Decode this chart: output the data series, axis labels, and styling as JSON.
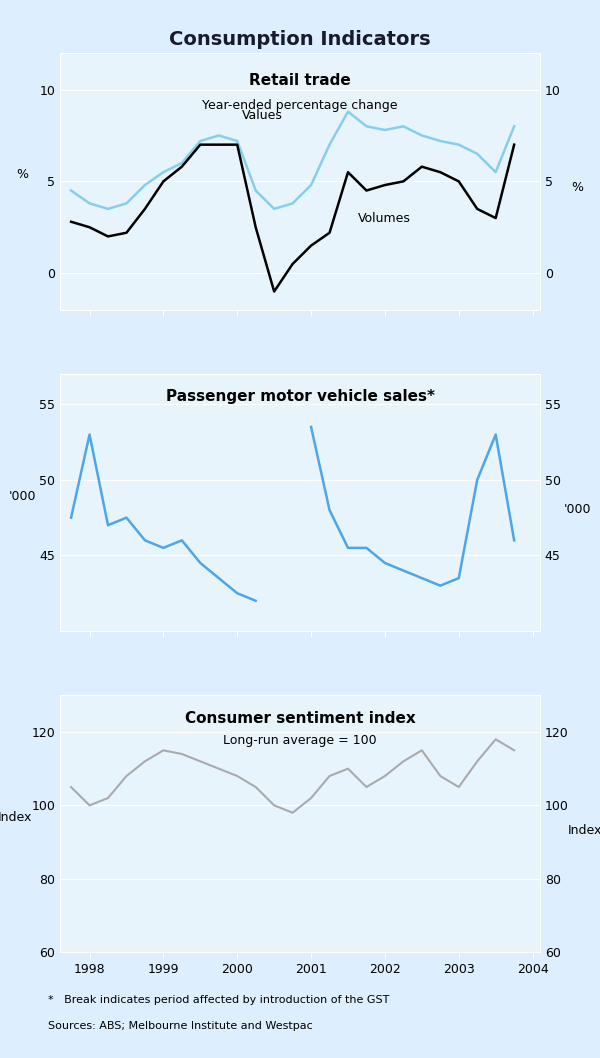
{
  "title": "Consumption Indicators",
  "background_color": "#ddeeff",
  "plot_bg_color": "#ddeeff",
  "panel_bg_color": "#e8f4fc",
  "panel1": {
    "title": "Retail trade",
    "subtitle": "Year-ended percentage change",
    "ylabel_left": "%",
    "ylabel_right": "%",
    "ylim": [
      -2,
      12
    ],
    "yticks": [
      0,
      5,
      10
    ],
    "values_label": "Values",
    "volumes_label": "Volumes",
    "values_color": "#87CEEB",
    "volumes_color": "#000000",
    "x_values": [
      1997.75,
      1998.0,
      1998.25,
      1998.5,
      1998.75,
      1999.0,
      1999.25,
      1999.5,
      1999.75,
      2000.0,
      2000.25,
      2000.5,
      2000.75,
      2001.0,
      2001.25,
      2001.5,
      2001.75,
      2002.0,
      2002.25,
      2002.5,
      2002.75,
      2003.0,
      2003.25,
      2003.5,
      2003.75
    ],
    "values_data": [
      4.5,
      3.8,
      3.5,
      3.8,
      4.8,
      5.5,
      6.0,
      7.2,
      7.5,
      7.2,
      4.5,
      3.5,
      3.8,
      4.8,
      7.0,
      8.8,
      8.0,
      7.8,
      8.0,
      7.5,
      7.2,
      7.0,
      6.5,
      5.5,
      8.0
    ],
    "volumes_data": [
      2.8,
      2.5,
      2.0,
      2.2,
      3.5,
      5.0,
      5.8,
      7.0,
      7.0,
      7.0,
      2.5,
      -1.0,
      0.5,
      1.5,
      2.2,
      5.5,
      4.5,
      4.8,
      5.0,
      5.8,
      5.5,
      5.0,
      3.5,
      3.0,
      7.0
    ]
  },
  "panel2": {
    "title": "Passenger motor vehicle sales*",
    "ylabel_left": "'000",
    "ylabel_right": "'000",
    "ylim": [
      40,
      57
    ],
    "yticks": [
      45,
      50,
      55
    ],
    "line_color": "#4da6e8",
    "x_values": [
      1997.75,
      1998.0,
      1998.25,
      1998.5,
      1998.75,
      1999.0,
      1999.25,
      1999.5,
      1999.75,
      2000.0,
      2000.25,
      2000.5,
      2000.75,
      2001.0,
      2001.25,
      2001.5,
      2001.75,
      2002.0,
      2002.25,
      2002.5,
      2002.75,
      2003.0,
      2003.25,
      2003.5,
      2003.75
    ],
    "data": [
      47.5,
      53.0,
      47.0,
      47.5,
      46.0,
      45.5,
      46.0,
      44.5,
      43.5,
      42.5,
      42.0,
      null,
      null,
      53.5,
      48.0,
      45.5,
      45.5,
      44.5,
      44.0,
      43.5,
      43.0,
      43.5,
      50.0,
      53.0,
      46.0
    ]
  },
  "panel3": {
    "title": "Consumer sentiment index",
    "subtitle": "Long-run average = 100",
    "ylabel_left": "Index",
    "ylabel_right": "Index",
    "ylim": [
      60,
      130
    ],
    "yticks": [
      60,
      80,
      100,
      120
    ],
    "line_color": "#aaaaaa",
    "x_values": [
      1997.75,
      1998.0,
      1998.25,
      1998.5,
      1998.75,
      1999.0,
      1999.25,
      1999.5,
      1999.75,
      2000.0,
      2000.25,
      2000.5,
      2000.75,
      2001.0,
      2001.25,
      2001.5,
      2001.75,
      2002.0,
      2002.25,
      2002.5,
      2002.75,
      2003.0,
      2003.25,
      2003.5,
      2003.75
    ],
    "data": [
      105,
      100,
      102,
      108,
      112,
      115,
      114,
      112,
      110,
      108,
      105,
      100,
      98,
      102,
      108,
      110,
      105,
      108,
      112,
      115,
      108,
      105,
      112,
      118,
      115
    ]
  },
  "xlim": [
    1997.6,
    2004.1
  ],
  "xticks": [
    1998,
    1999,
    2000,
    2001,
    2002,
    2003,
    2004
  ],
  "xticklabels": [
    "1998",
    "1999",
    "2000",
    "2001",
    "2002",
    "2003",
    "2004"
  ],
  "footnote1": "*   Break indicates period affected by introduction of the GST",
  "footnote2": "Sources: ABS; Melbourne Institute and Westpac"
}
